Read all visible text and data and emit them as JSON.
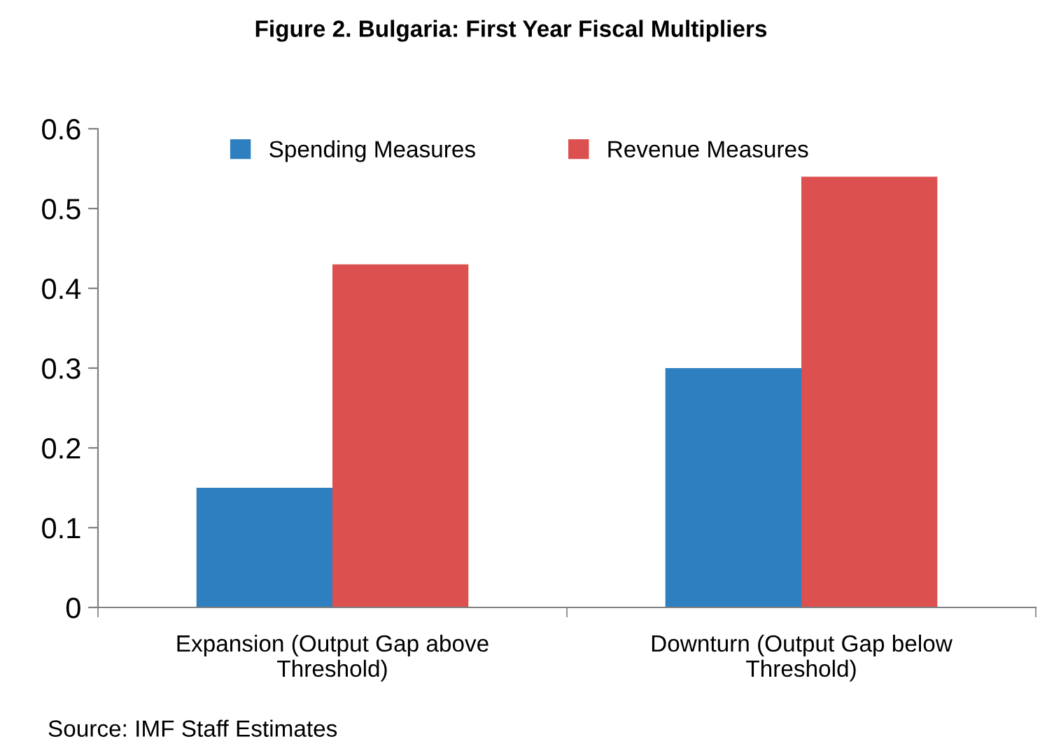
{
  "chart_data": {
    "type": "bar",
    "title": "Figure 2. Bulgaria: First Year Fiscal Multipliers",
    "categories": [
      "Expansion (Output Gap above Threshold)",
      "Downturn (Output Gap below Threshold)"
    ],
    "series": [
      {
        "name": "Spending Measures",
        "color": "#2e7fc0",
        "values": [
          0.15,
          0.3
        ]
      },
      {
        "name": "Revenue Measures",
        "color": "#dc5050",
        "values": [
          0.43,
          0.54
        ]
      }
    ],
    "ylim": [
      0,
      0.6
    ],
    "yticks": [
      {
        "value": 0,
        "label": "0"
      },
      0.1,
      0.2,
      0.3,
      0.4,
      0.5,
      0.6
    ],
    "grid": false,
    "legend": "top",
    "annotations": [
      "Source: IMF Staff Estimates"
    ]
  }
}
